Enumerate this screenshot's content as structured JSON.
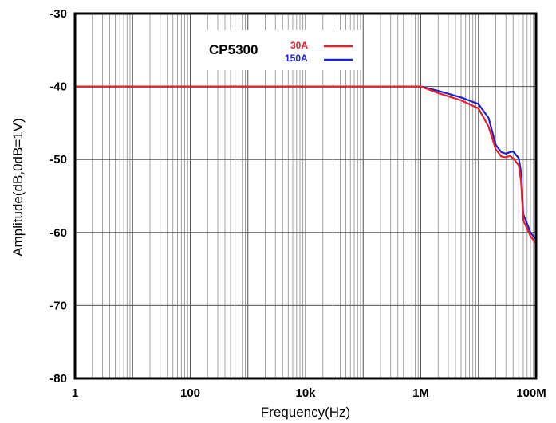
{
  "chart_data": {
    "type": "line",
    "xlabel": "Frequency(Hz)",
    "ylabel": "Amplitude(dB,0dB=1V)",
    "x_scale": "log",
    "xlim": [
      1,
      100000000
    ],
    "ylim": [
      -80,
      -30
    ],
    "grid": true,
    "x_ticks": [
      {
        "value": 1,
        "label": "1"
      },
      {
        "value": 100,
        "label": "100"
      },
      {
        "value": 10000,
        "label": "10k"
      },
      {
        "value": 1000000,
        "label": "1M"
      },
      {
        "value": 100000000,
        "label": "100M"
      }
    ],
    "y_ticks": [
      {
        "value": -30,
        "label": "-30"
      },
      {
        "value": -40,
        "label": "-40"
      },
      {
        "value": -50,
        "label": "-50"
      },
      {
        "value": -60,
        "label": "-60"
      },
      {
        "value": -70,
        "label": "-70"
      },
      {
        "value": -80,
        "label": "-80"
      }
    ],
    "legend": {
      "title": "CP5300",
      "placement": "top-center"
    },
    "series": [
      {
        "name": "30A",
        "color": "#e8202a",
        "x": [
          1,
          100000,
          1000000,
          2000000,
          5000000,
          10000000,
          15000000,
          20000000,
          25000000,
          30000000,
          35000000,
          40000000,
          50000000,
          55000000,
          60000000,
          70000000,
          80000000,
          100000000
        ],
        "y": [
          -40,
          -40,
          -40,
          -40.9,
          -41.9,
          -43.0,
          -45.5,
          -48.6,
          -49.6,
          -49.7,
          -49.5,
          -49.8,
          -50.8,
          -53.0,
          -58.3,
          -59.5,
          -60.5,
          -61.5
        ]
      },
      {
        "name": "150A",
        "color": "#2222cc",
        "x": [
          1,
          100000,
          1000000,
          2000000,
          5000000,
          10000000,
          15000000,
          20000000,
          25000000,
          30000000,
          35000000,
          40000000,
          50000000,
          55000000,
          60000000,
          70000000,
          80000000,
          100000000
        ],
        "y": [
          -40,
          -40,
          -40,
          -40.6,
          -41.5,
          -42.4,
          -44.3,
          -48.0,
          -49.0,
          -49.2,
          -49.0,
          -48.9,
          -49.8,
          -51.8,
          -57.5,
          -58.8,
          -60.0,
          -61.0
        ]
      }
    ]
  }
}
